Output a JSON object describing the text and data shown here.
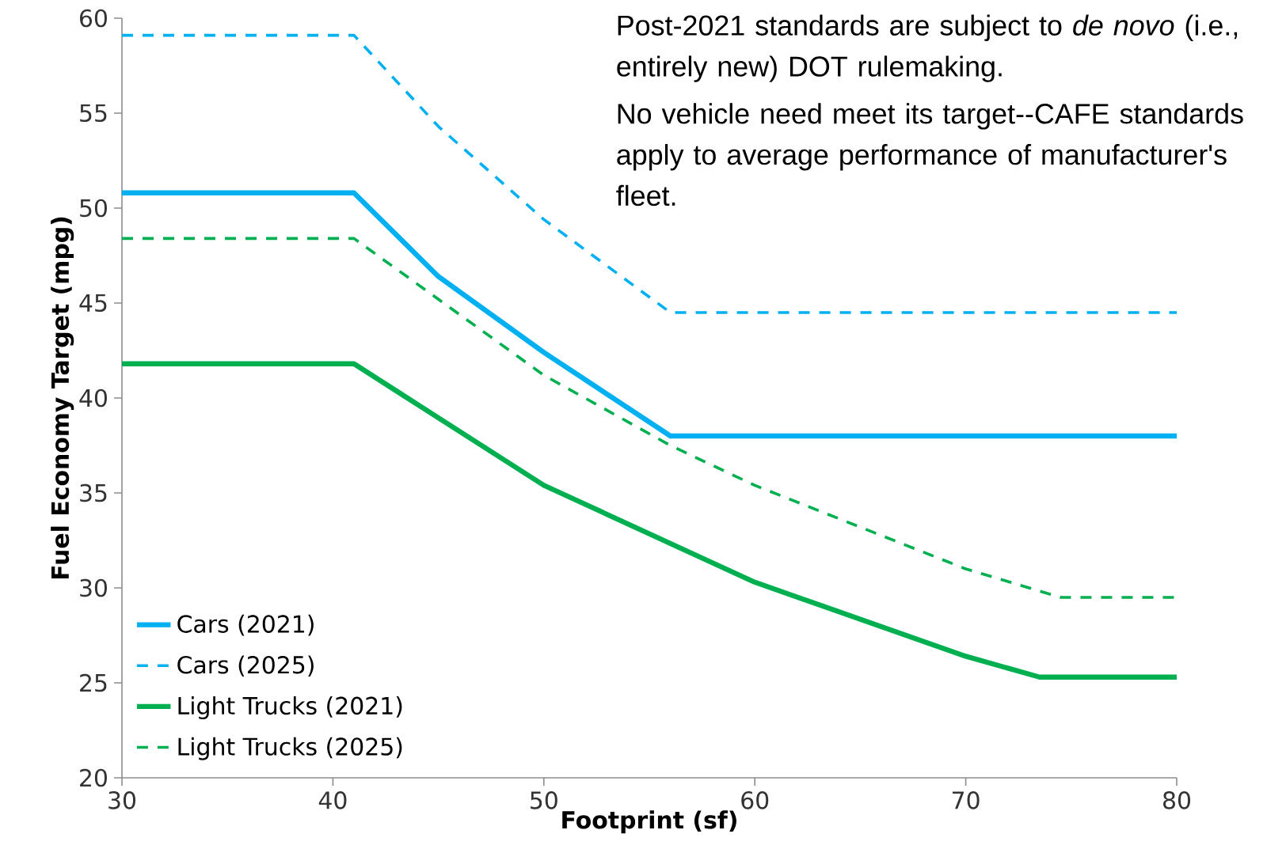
{
  "chart_data": {
    "type": "line",
    "xlabel": "Footprint (sf)",
    "ylabel": "Fuel Economy Target (mpg)",
    "xlim": [
      30,
      80
    ],
    "ylim": [
      20,
      60
    ],
    "xticks": [
      30,
      40,
      50,
      60,
      70,
      80
    ],
    "yticks": [
      20,
      25,
      30,
      35,
      40,
      45,
      50,
      55,
      60
    ],
    "legend": "bottom left",
    "grid": false,
    "annotations": [
      "Post-2021 standards are subject to *de novo* (i.e., entirely new) DOT rulemaking.",
      "No vehicle need meet its target--CAFE standards apply to average performance of manufacturer's fleet."
    ],
    "series": [
      {
        "name": "Cars (2021)",
        "color": "#00b0f0",
        "line_style": "solid",
        "x": [
          30,
          41,
          45,
          50,
          56,
          80
        ],
        "values": [
          50.8,
          50.8,
          46.4,
          42.4,
          38.0,
          38.0
        ]
      },
      {
        "name": "Cars (2025)",
        "color": "#00b0f0",
        "line_style": "dashed",
        "x": [
          30,
          41,
          45,
          50,
          56,
          80
        ],
        "values": [
          59.1,
          59.1,
          54.3,
          49.4,
          44.5,
          44.5
        ]
      },
      {
        "name": "Light Trucks (2021)",
        "color": "#00b050",
        "line_style": "solid",
        "x": [
          30,
          41,
          50,
          60,
          70,
          73.5,
          80
        ],
        "values": [
          41.8,
          41.8,
          35.4,
          30.3,
          26.4,
          25.3,
          25.3
        ]
      },
      {
        "name": "Light Trucks (2025)",
        "color": "#00b050",
        "line_style": "dashed",
        "x": [
          30,
          41,
          50,
          56,
          60,
          70,
          74.5,
          80
        ],
        "values": [
          48.4,
          48.4,
          41.2,
          37.5,
          35.4,
          31.0,
          29.5,
          29.5
        ]
      }
    ]
  }
}
